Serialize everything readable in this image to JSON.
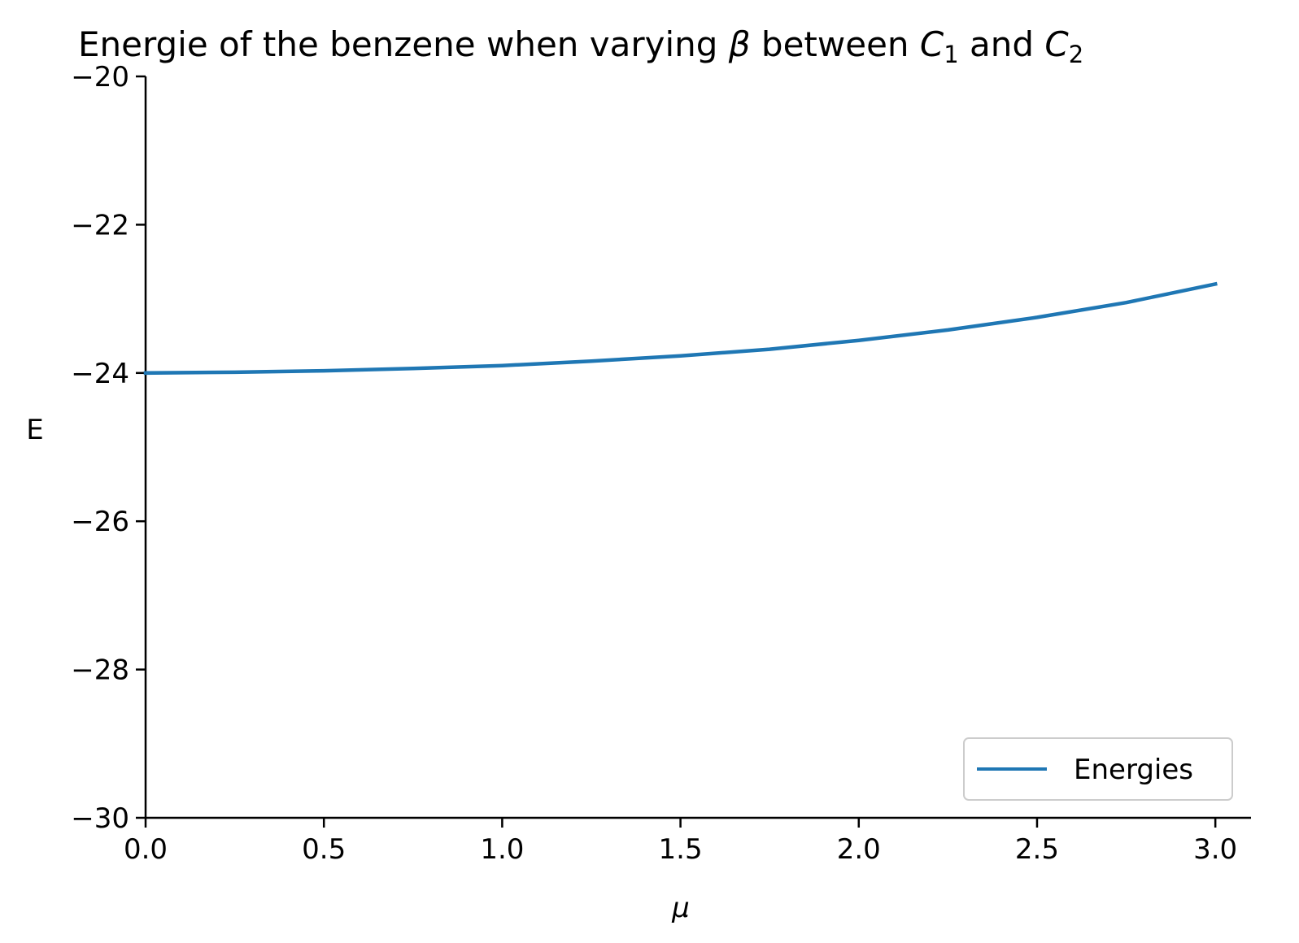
{
  "chart_data": {
    "type": "line",
    "title": "Energie of the benzene when varying β between C1 and C2",
    "title_parts": {
      "prefix": "Energie of the benzene when varying ",
      "beta": "β",
      "between": " between ",
      "c": "C",
      "sub1": "1",
      "and": " and ",
      "sub2": "2"
    },
    "xlabel": "μ",
    "ylabel": "E",
    "xlim": [
      0.0,
      3.1
    ],
    "ylim": [
      -30,
      -20
    ],
    "x_ticks": [
      0.0,
      0.5,
      1.0,
      1.5,
      2.0,
      2.5,
      3.0
    ],
    "x_tick_labels": [
      "0.0",
      "0.5",
      "1.0",
      "1.5",
      "2.0",
      "2.5",
      "3.0"
    ],
    "y_ticks": [
      -20,
      -22,
      -24,
      -26,
      -28,
      -30
    ],
    "y_tick_labels": [
      "−20",
      "−22",
      "−24",
      "−26",
      "−28",
      "−30"
    ],
    "grid": false,
    "legend_position": "lower-right",
    "series": [
      {
        "name": "Energies",
        "color": "#1f77b4",
        "x": [
          0.0,
          0.25,
          0.5,
          0.75,
          1.0,
          1.25,
          1.5,
          1.75,
          2.0,
          2.25,
          2.5,
          2.75,
          3.0
        ],
        "y": [
          -24.0,
          -23.99,
          -23.97,
          -23.94,
          -23.9,
          -23.84,
          -23.77,
          -23.68,
          -23.56,
          -23.42,
          -23.25,
          -23.05,
          -22.8
        ]
      }
    ]
  }
}
